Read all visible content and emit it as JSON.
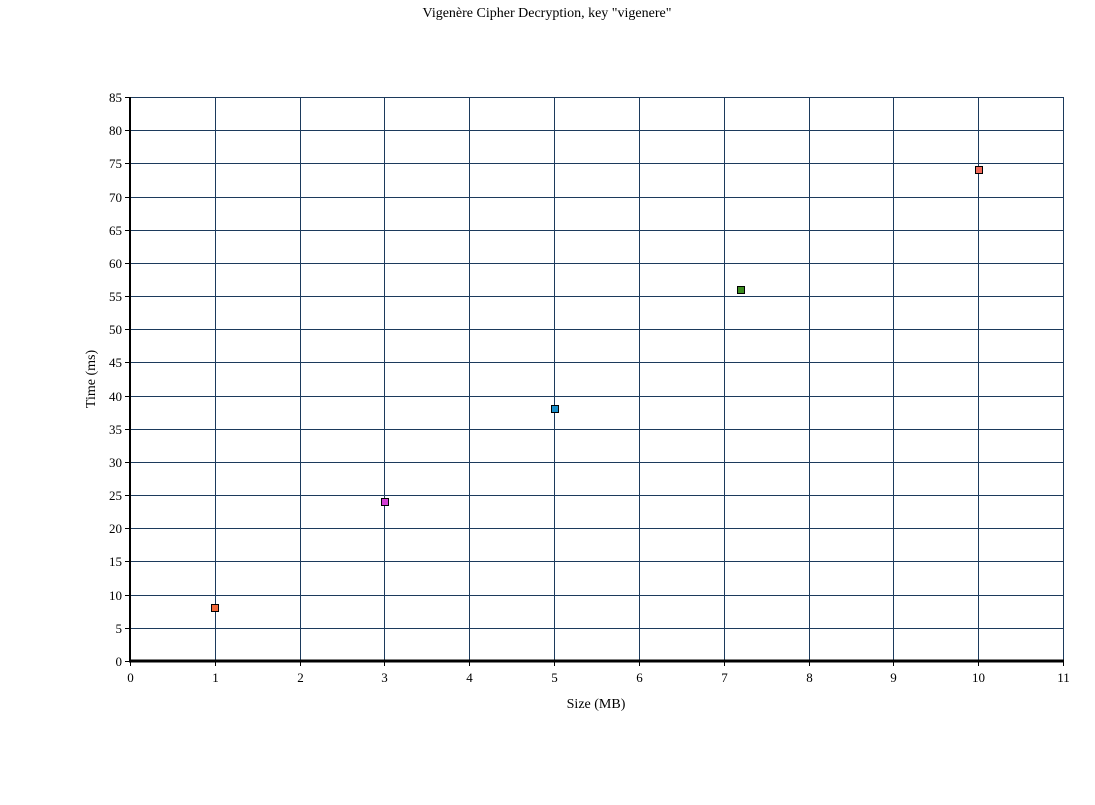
{
  "chart_data": {
    "type": "scatter",
    "title": "Vigenère Cipher Decryption, key \"vigenere\"",
    "xlabel": "Size (MB)",
    "ylabel": "Time (ms)",
    "xlim": [
      0,
      11
    ],
    "ylim": [
      0,
      85
    ],
    "x_ticks": [
      0,
      1,
      2,
      3,
      4,
      5,
      6,
      7,
      8,
      9,
      10,
      11
    ],
    "y_ticks": [
      0,
      5,
      10,
      15,
      20,
      25,
      30,
      35,
      40,
      45,
      50,
      55,
      60,
      65,
      70,
      75,
      80,
      85
    ],
    "grid": true,
    "legend": "none",
    "points": [
      {
        "x": 1,
        "y": 8,
        "color": "#f2693a"
      },
      {
        "x": 3,
        "y": 24,
        "color": "#d43fd4"
      },
      {
        "x": 5,
        "y": 38,
        "color": "#1a8fc9"
      },
      {
        "x": 7.2,
        "y": 56,
        "color": "#3c8c1f"
      },
      {
        "x": 10,
        "y": 74,
        "color": "#f26a5a"
      }
    ]
  },
  "colors": {
    "grid": "#1c3a5c",
    "axis": "#000000",
    "marker_stroke": "#000000",
    "background": "#ffffff"
  }
}
